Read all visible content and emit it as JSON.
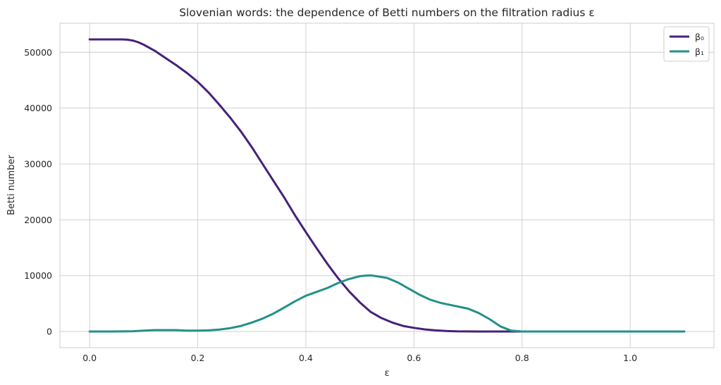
{
  "chart_data": {
    "type": "line",
    "title": "Slovenian words: the dependence of Betti numbers on the filtration radius ε",
    "xlabel": "ε",
    "ylabel": "Betti number",
    "xlim": [
      -0.055,
      1.155
    ],
    "ylim": [
      -2900,
      55200
    ],
    "xticks": [
      0.0,
      0.2,
      0.4,
      0.6,
      0.8,
      1.0
    ],
    "xtick_labels": [
      "0.0",
      "0.2",
      "0.4",
      "0.6",
      "0.8",
      "1.0"
    ],
    "yticks": [
      0,
      10000,
      20000,
      30000,
      40000,
      50000
    ],
    "ytick_labels": [
      "0",
      "10000",
      "20000",
      "30000",
      "40000",
      "50000"
    ],
    "grid": true,
    "legend": "top-right",
    "series": [
      {
        "name": "β₀",
        "color": "#46217a",
        "x": [
          0.0,
          0.02,
          0.04,
          0.06,
          0.07,
          0.08,
          0.09,
          0.1,
          0.12,
          0.14,
          0.16,
          0.18,
          0.2,
          0.22,
          0.24,
          0.26,
          0.28,
          0.3,
          0.32,
          0.34,
          0.36,
          0.38,
          0.4,
          0.42,
          0.44,
          0.46,
          0.48,
          0.5,
          0.52,
          0.54,
          0.56,
          0.58,
          0.6,
          0.62,
          0.64,
          0.66,
          0.68,
          0.7,
          0.72,
          0.75,
          0.8,
          0.9,
          1.0,
          1.1
        ],
        "y": [
          52300,
          52300,
          52300,
          52300,
          52250,
          52100,
          51800,
          51350,
          50300,
          49000,
          47700,
          46300,
          44700,
          42800,
          40600,
          38300,
          35800,
          33000,
          30000,
          27000,
          24000,
          20800,
          17800,
          14900,
          12100,
          9500,
          7200,
          5200,
          3500,
          2400,
          1600,
          1000,
          650,
          380,
          200,
          90,
          30,
          10,
          0,
          0,
          0,
          0,
          0,
          0
        ]
      },
      {
        "name": "β₁",
        "color": "#229188",
        "x": [
          0.0,
          0.04,
          0.08,
          0.1,
          0.12,
          0.14,
          0.16,
          0.18,
          0.2,
          0.22,
          0.24,
          0.26,
          0.28,
          0.3,
          0.32,
          0.34,
          0.36,
          0.38,
          0.4,
          0.42,
          0.44,
          0.46,
          0.48,
          0.5,
          0.51,
          0.52,
          0.53,
          0.55,
          0.57,
          0.59,
          0.61,
          0.63,
          0.65,
          0.67,
          0.69,
          0.7,
          0.72,
          0.74,
          0.76,
          0.78,
          0.8,
          0.9,
          1.0,
          1.1
        ],
        "y": [
          0,
          0,
          50,
          150,
          250,
          250,
          250,
          150,
          150,
          200,
          350,
          600,
          1000,
          1600,
          2300,
          3200,
          4300,
          5400,
          6400,
          7100,
          7800,
          8700,
          9400,
          9900,
          10000,
          10050,
          9900,
          9600,
          8800,
          7700,
          6600,
          5700,
          5100,
          4700,
          4300,
          4100,
          3300,
          2200,
          900,
          150,
          0,
          0,
          0,
          0
        ]
      }
    ]
  }
}
